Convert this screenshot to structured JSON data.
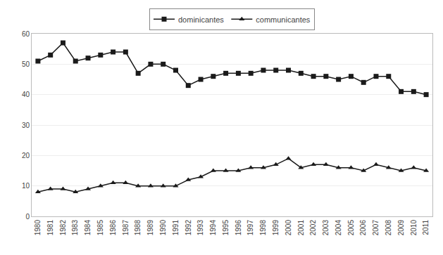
{
  "chart_data": {
    "type": "line",
    "x": [
      1980,
      1981,
      1982,
      1983,
      1984,
      1985,
      1986,
      1987,
      1988,
      1989,
      1990,
      1991,
      1992,
      1993,
      1994,
      1995,
      1996,
      1997,
      1998,
      1999,
      2000,
      2001,
      2002,
      2003,
      2004,
      2005,
      2006,
      2007,
      2008,
      2009,
      2010,
      2011
    ],
    "series": [
      {
        "name": "dominicantes",
        "color": "#1a1a1a",
        "marker": "square",
        "values": [
          51,
          53,
          57,
          51,
          52,
          53,
          54,
          54,
          47,
          50,
          50,
          48,
          43,
          45,
          46,
          47,
          47,
          47,
          48,
          48,
          48,
          47,
          46,
          46,
          45,
          46,
          44,
          46,
          46,
          41,
          41,
          40
        ]
      },
      {
        "name": "communicantes",
        "color": "#1a1a1a",
        "marker": "triangle",
        "values": [
          8,
          9,
          9,
          8,
          9,
          10,
          11,
          11,
          10,
          10,
          10,
          10,
          12,
          13,
          15,
          15,
          15,
          16,
          16,
          17,
          19,
          16,
          17,
          17,
          16,
          16,
          15,
          17,
          16,
          15,
          16,
          15
        ]
      }
    ],
    "xlim": [
      1979.5,
      2011.5
    ],
    "xticks": [
      1980,
      1981,
      1982,
      1983,
      1984,
      1985,
      1986,
      1987,
      1988,
      1989,
      1990,
      1991,
      1992,
      1993,
      1994,
      1995,
      1996,
      1997,
      1998,
      1999,
      2000,
      2001,
      2002,
      2003,
      2004,
      2005,
      2006,
      2007,
      2008,
      2009,
      2010,
      2011
    ],
    "ylim": [
      0,
      60
    ],
    "yticks": [
      0,
      10,
      20,
      30,
      40,
      50,
      60
    ],
    "grid": true,
    "legend": "top"
  }
}
